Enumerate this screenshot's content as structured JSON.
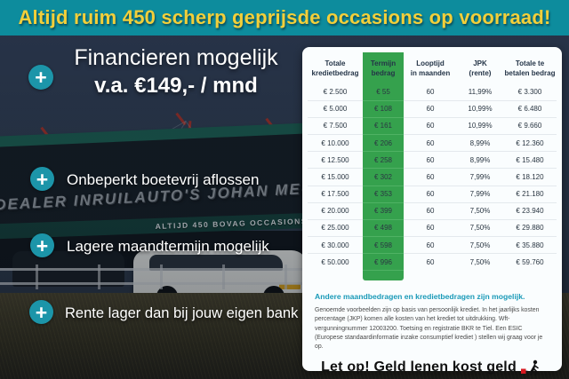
{
  "banner": {
    "text": "Altijd ruim 450 scherp geprijsde occasions op voorraad!"
  },
  "bullets": {
    "item1_line1": "Financieren mogelijk",
    "item1_line2": "v.a. €149,- / mnd",
    "item2": "Onbeperkt boetevrij aflossen",
    "item3": "Lagere maandtermijn mogelijk",
    "item4": "Rente lager dan bij jouw eigen bank"
  },
  "background": {
    "sign_main": "DEALER INRUILAUTO'S JOHAN MEURE",
    "sign_sub": "ALTIJD 450 BOVAG OCCASIONS"
  },
  "table": {
    "headers": [
      [
        "Totale",
        "kredietbedrag"
      ],
      [
        "Termijn",
        "bedrag"
      ],
      [
        "Looptijd",
        "in maanden"
      ],
      [
        "JPK",
        "(rente)"
      ],
      [
        "Totale te",
        "betalen bedrag"
      ]
    ],
    "rows": [
      [
        "€ 2.500",
        "€ 55",
        "60",
        "11,99%",
        "€ 3.300"
      ],
      [
        "€ 5.000",
        "€ 108",
        "60",
        "10,99%",
        "€ 6.480"
      ],
      [
        "€ 7.500",
        "€ 161",
        "60",
        "10,99%",
        "€ 9.660"
      ],
      [
        "€ 10.000",
        "€ 206",
        "60",
        "8,99%",
        "€ 12.360"
      ],
      [
        "€ 12.500",
        "€ 258",
        "60",
        "8,99%",
        "€ 15.480"
      ],
      [
        "€ 15.000",
        "€ 302",
        "60",
        "7,99%",
        "€ 18.120"
      ],
      [
        "€ 17.500",
        "€ 353",
        "60",
        "7,99%",
        "€ 21.180"
      ],
      [
        "€ 20.000",
        "€ 399",
        "60",
        "7,50%",
        "€ 23.940"
      ],
      [
        "€ 25.000",
        "€ 498",
        "60",
        "7,50%",
        "€ 29.880"
      ],
      [
        "€ 30.000",
        "€ 598",
        "60",
        "7,50%",
        "€ 35.880"
      ],
      [
        "€ 50.000",
        "€ 996",
        "60",
        "7,50%",
        "€ 59.760"
      ]
    ]
  },
  "notes": {
    "highlight": "Andere maandbedragen en kredietbedragen zijn mogelijk.",
    "fine_print": "Genoemde voorbeelden zijn op basis van persoonlijk krediet. In het jaarlijks kosten percentage (JKP) komen alle kosten van het krediet tot uitdrukking. Wft-vergunningnummer 12003200. Toetsing en registratie BKR te Tiel. Een ESIC (Europese standaardinformatie inzake consumptief krediet ) stellen wij graag voor je op.",
    "warning": "Let op! Geld lenen kost geld"
  },
  "colors": {
    "banner_bg": "#0d8c9d",
    "banner_text": "#f2cf3a",
    "bullet_icon_teal": "#1c95a9",
    "table_green": "#35a14d",
    "note_blue": "#1a9ab8",
    "warning_red": "#d71920"
  }
}
